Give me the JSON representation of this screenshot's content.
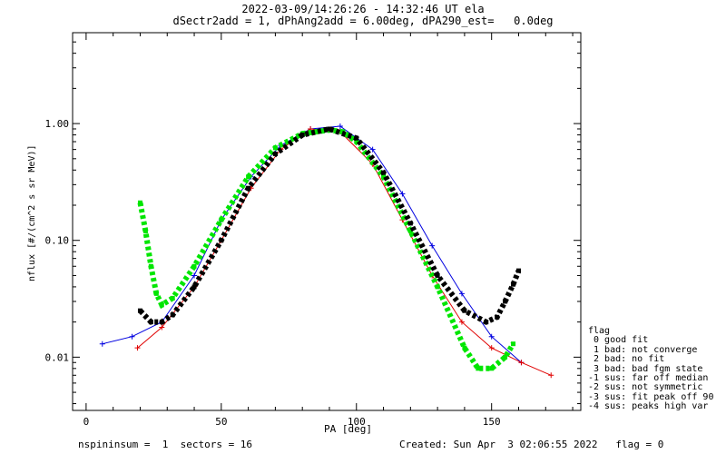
{
  "title_line1": "2022-03-09/14:26:26 - 14:32:46 UT ela",
  "title_line2": "dSectr2add = 1, dPhAng2add = 6.00deg, dPA290_est=   0.0deg",
  "footer_left": "nspininsum =  1  sectors = 16",
  "footer_right": "Created: Sun Apr  3 02:06:55 2022   flag = 0",
  "legend": {
    "title": "flag",
    "items": [
      " 0 good fit",
      " 1 bad: not converge",
      " 2 bad: no fit",
      " 3 bad: bad fgm state",
      "-1 sus: far off median",
      "-2 sus: not symmetric",
      "-3 sus: fit peak off 90",
      "-4 sus: peaks high var"
    ]
  },
  "colors": {
    "red": "#e00000",
    "blue": "#0000e0",
    "green": "#00e600",
    "black": "#000000"
  },
  "chart_data": {
    "type": "line",
    "title": "2022-03-09/14:26:26 - 14:32:46 UT ela",
    "subtitle": "dSectr2add = 1, dPhAng2add = 6.00deg, dPA290_est=   0.0deg",
    "xlabel": "PA [deg]",
    "ylabel": "nflux [#/(cm^2 s sr MeV)]",
    "xlim": [
      -5,
      183
    ],
    "ylim": [
      0.0035,
      6.0
    ],
    "yscale": "log",
    "x_ticks": [
      0,
      50,
      100,
      150
    ],
    "y_ticks": [
      {
        "value": 0.01,
        "label": "0.01"
      },
      {
        "value": 0.1,
        "label": "0.10"
      },
      {
        "value": 1.0,
        "label": "1.00"
      }
    ],
    "grid": false,
    "legend_position": "right",
    "series": [
      {
        "color": "blue",
        "style": "line-plus",
        "x": [
          6,
          17,
          28,
          40,
          50,
          61,
          72,
          83,
          94,
          106,
          117,
          128,
          139,
          150,
          161
        ],
        "y": [
          0.013,
          0.015,
          0.02,
          0.05,
          0.15,
          0.35,
          0.65,
          0.9,
          0.95,
          0.6,
          0.25,
          0.09,
          0.035,
          0.015,
          0.009
        ]
      },
      {
        "color": "red",
        "style": "line-plus",
        "x": [
          19,
          28,
          40,
          50,
          61,
          72,
          83,
          94,
          106,
          117,
          128,
          139,
          150,
          161,
          172
        ],
        "y": [
          0.012,
          0.018,
          0.04,
          0.1,
          0.28,
          0.6,
          0.9,
          0.85,
          0.45,
          0.15,
          0.05,
          0.02,
          0.012,
          0.009,
          0.007
        ]
      },
      {
        "color": "green",
        "style": "dotted-thick",
        "x": [
          20,
          22,
          24,
          26,
          28,
          32,
          40,
          50,
          60,
          70,
          80,
          90,
          95,
          100,
          110,
          120,
          130,
          140,
          145,
          150,
          155,
          158
        ],
        "y": [
          0.21,
          0.12,
          0.06,
          0.035,
          0.028,
          0.032,
          0.06,
          0.15,
          0.35,
          0.62,
          0.82,
          0.88,
          0.85,
          0.7,
          0.35,
          0.12,
          0.04,
          0.012,
          0.008,
          0.008,
          0.01,
          0.013
        ]
      },
      {
        "color": "black",
        "style": "dotted-thick",
        "x": [
          20,
          24,
          28,
          32,
          40,
          50,
          60,
          70,
          80,
          90,
          100,
          110,
          120,
          130,
          140,
          148,
          152,
          155,
          158,
          160
        ],
        "y": [
          0.025,
          0.02,
          0.02,
          0.023,
          0.04,
          0.1,
          0.28,
          0.55,
          0.8,
          0.9,
          0.75,
          0.38,
          0.14,
          0.05,
          0.025,
          0.02,
          0.022,
          0.03,
          0.042,
          0.055
        ]
      }
    ]
  }
}
